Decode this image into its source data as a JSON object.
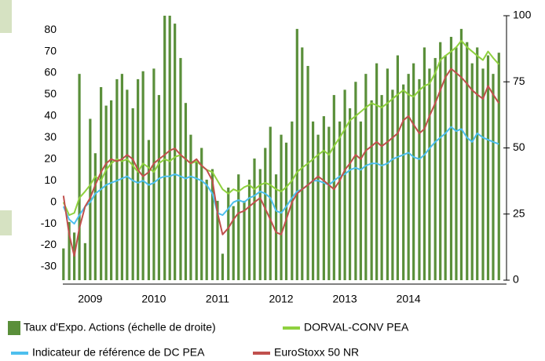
{
  "chart_data": {
    "type": "bar",
    "x": [
      2009.08,
      2009.17,
      2009.25,
      2009.33,
      2009.42,
      2009.5,
      2009.58,
      2009.67,
      2009.75,
      2009.83,
      2009.92,
      2010.0,
      2010.08,
      2010.17,
      2010.25,
      2010.33,
      2010.42,
      2010.5,
      2010.58,
      2010.67,
      2010.75,
      2010.83,
      2010.92,
      2011.0,
      2011.08,
      2011.17,
      2011.25,
      2011.33,
      2011.42,
      2011.5,
      2011.58,
      2011.67,
      2011.75,
      2011.83,
      2011.92,
      2012.0,
      2012.08,
      2012.17,
      2012.25,
      2012.33,
      2012.42,
      2012.5,
      2012.58,
      2012.67,
      2012.75,
      2012.83,
      2012.92,
      2013.0,
      2013.08,
      2013.17,
      2013.25,
      2013.33,
      2013.42,
      2013.5,
      2013.58,
      2013.67,
      2013.75,
      2013.83,
      2013.92,
      2014.0,
      2014.08,
      2014.17,
      2014.25,
      2014.33,
      2014.42,
      2014.5,
      2014.58,
      2014.67,
      2014.75,
      2014.83,
      2014.92,
      2015.0,
      2015.08,
      2015.17,
      2015.25,
      2015.33,
      2015.42,
      2015.5,
      2015.58,
      2015.67,
      2015.75,
      2015.83,
      2015.92
    ],
    "series": [
      {
        "name": "Taux d'Expo. Actions (échelle de droite)",
        "type": "bar",
        "axis": "y2",
        "color": "#5a8f3a",
        "values": [
          12,
          22,
          18,
          78,
          14,
          61,
          48,
          73,
          66,
          68,
          76,
          78,
          72,
          65,
          76,
          79,
          53,
          80,
          70,
          100,
          100,
          97,
          84,
          67,
          55,
          45,
          50,
          38,
          42,
          30,
          10,
          35,
          28,
          40,
          30,
          38,
          46,
          42,
          50,
          58,
          40,
          55,
          52,
          60,
          95,
          88,
          81,
          60,
          55,
          62,
          58,
          70,
          60,
          72,
          65,
          75,
          60,
          78,
          68,
          82,
          70,
          80,
          72,
          85,
          74,
          78,
          82,
          76,
          88,
          80,
          84,
          90,
          85,
          92,
          88,
          95,
          90,
          82,
          88,
          80,
          85,
          78,
          86
        ]
      },
      {
        "name": "DORVAL-CONV PEA",
        "type": "line",
        "color": "#8fd13f",
        "values": [
          0,
          -6,
          -5,
          2,
          5,
          8,
          12,
          10,
          15,
          18,
          20,
          19,
          20,
          17,
          14,
          18,
          16,
          14,
          18,
          20,
          19,
          21,
          22,
          20,
          18,
          19,
          17,
          15,
          14,
          10,
          6,
          4,
          6,
          5,
          7,
          8,
          6,
          8,
          9,
          8,
          6,
          5,
          7,
          10,
          14,
          16,
          18,
          20,
          22,
          24,
          22,
          26,
          30,
          34,
          38,
          40,
          42,
          44,
          46,
          45,
          44,
          46,
          48,
          50,
          52,
          50,
          49,
          52,
          54,
          55,
          60,
          66,
          68,
          70,
          72,
          75,
          72,
          70,
          68,
          66,
          70,
          67,
          64
        ]
      },
      {
        "name": "Indicateur de référence de DC PEA",
        "type": "line",
        "color": "#4dbfee",
        "values": [
          -2,
          -8,
          -10,
          -6,
          -2,
          0,
          4,
          6,
          8,
          9,
          10,
          11,
          12,
          10,
          9,
          10,
          8,
          9,
          11,
          12,
          12,
          13,
          12,
          11,
          12,
          11,
          10,
          8,
          4,
          -5,
          -6,
          -3,
          0,
          1,
          0,
          2,
          3,
          5,
          4,
          2,
          -4,
          -5,
          -2,
          2,
          5,
          6,
          8,
          10,
          10,
          9,
          8,
          10,
          12,
          13,
          15,
          16,
          15,
          17,
          18,
          18,
          17,
          18,
          20,
          21,
          22,
          23,
          21,
          20,
          22,
          25,
          28,
          30,
          32,
          35,
          33,
          34,
          30,
          28,
          32,
          30,
          29,
          28,
          27
        ]
      },
      {
        "name": "EuroStoxx 50 NR",
        "type": "line",
        "color": "#c0504d",
        "values": [
          3,
          -15,
          -25,
          -12,
          -2,
          2,
          8,
          14,
          18,
          20,
          19,
          20,
          22,
          20,
          15,
          12,
          14,
          18,
          20,
          22,
          24,
          25,
          22,
          20,
          18,
          20,
          17,
          15,
          10,
          -5,
          -15,
          -12,
          -8,
          -5,
          -4,
          -2,
          0,
          2,
          -3,
          -8,
          -14,
          -15,
          -8,
          0,
          4,
          6,
          8,
          10,
          12,
          10,
          8,
          6,
          10,
          15,
          18,
          22,
          20,
          24,
          26,
          28,
          26,
          28,
          30,
          32,
          38,
          40,
          36,
          32,
          34,
          40,
          46,
          52,
          58,
          62,
          60,
          58,
          55,
          52,
          50,
          48,
          54,
          50,
          46
        ]
      }
    ],
    "xlim": [
      2009.07,
      2016.04
    ],
    "xticks": [
      {
        "value": 2009.5,
        "label": "2009"
      },
      {
        "value": 2010.5,
        "label": "2010"
      },
      {
        "value": 2011.5,
        "label": "2011"
      },
      {
        "value": 2012.5,
        "label": "2012"
      },
      {
        "value": 2013.5,
        "label": "2013"
      },
      {
        "value": 2014.5,
        "label": "2014"
      }
    ],
    "ylim": [
      -36.2,
      86.6
    ],
    "yticks": [
      -30,
      -20,
      -10,
      0,
      10,
      20,
      30,
      40,
      50,
      60,
      70,
      80
    ],
    "y2lim": [
      0,
      100
    ],
    "y2ticks": [
      0,
      25,
      50,
      75,
      100
    ],
    "grid": false
  }
}
